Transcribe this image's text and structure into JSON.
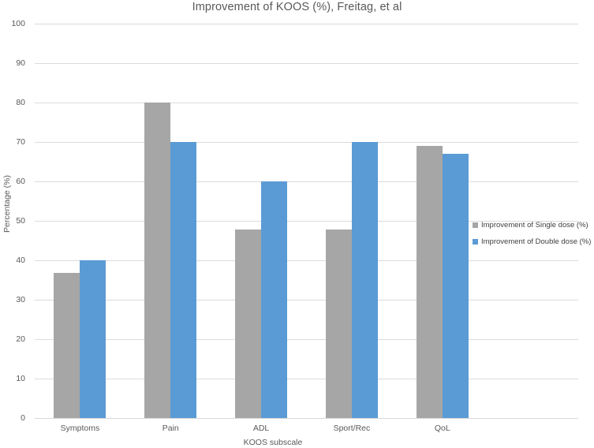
{
  "chart_data": {
    "type": "bar",
    "title": "Improvement of KOOS (%), Freitag, et al",
    "xlabel": "KOOS subscale",
    "ylabel": "Percentage (%)",
    "categories": [
      "Symptoms",
      "Pain",
      "ADL",
      "Sport/Rec",
      "QoL"
    ],
    "series": [
      {
        "name": "Improvement of Single dose (%)",
        "color": "#A6A6A6",
        "values": [
          36.8,
          80,
          47.8,
          47.8,
          69
        ]
      },
      {
        "name": "Improvement of Double dose (%)",
        "color": "#5B9BD5",
        "values": [
          40,
          70,
          60,
          70,
          67
        ]
      }
    ],
    "ylim": [
      0,
      100
    ],
    "yticks": [
      0,
      10,
      20,
      30,
      40,
      50,
      60,
      70,
      80,
      90,
      100
    ],
    "grid": true,
    "legend_position": "right-overlay",
    "colors": {
      "gridline": "#DBDBDB",
      "axis_line": "#D9D9D9",
      "text": "#595959",
      "legend_text": "#404040",
      "background": "#FFFFFF"
    }
  }
}
